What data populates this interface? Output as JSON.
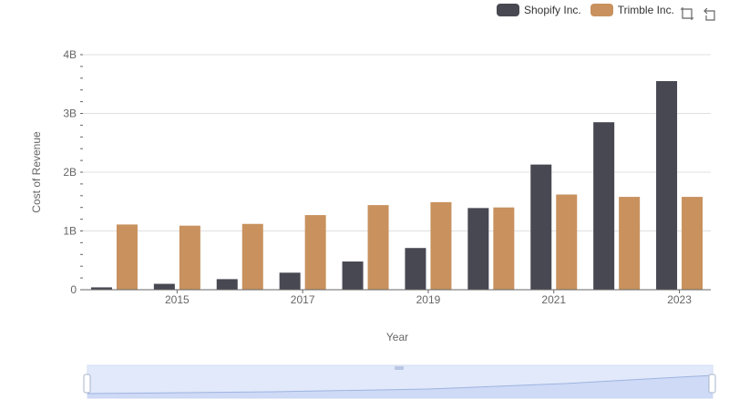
{
  "chart_data": {
    "type": "bar",
    "xlabel": "Year",
    "ylabel": "Cost of Revenue",
    "categories": [
      "2014",
      "2015",
      "2016",
      "2017",
      "2018",
      "2019",
      "2020",
      "2021",
      "2022",
      "2023"
    ],
    "x_tick_labels": [
      "2015",
      "2017",
      "2019",
      "2021",
      "2023"
    ],
    "y_tick_labels": [
      "0",
      "1B",
      "2B",
      "3B",
      "4B"
    ],
    "ylim": [
      0,
      4000000000
    ],
    "series": [
      {
        "name": "Shopify Inc.",
        "color": "#484853",
        "values": [
          40000000,
          100000000,
          180000000,
          290000000,
          480000000,
          710000000,
          1390000000,
          2130000000,
          2850000000,
          3550000000
        ]
      },
      {
        "name": "Trimble Inc.",
        "color": "#c8915e",
        "values": [
          1110000000,
          1090000000,
          1120000000,
          1270000000,
          1440000000,
          1490000000,
          1400000000,
          1620000000,
          1580000000,
          1580000000
        ]
      }
    ],
    "legend_position": "top-right",
    "grid": true
  },
  "toolbox": {
    "zoom_icon": "zoom-icon",
    "restore_icon": "restore-icon"
  }
}
